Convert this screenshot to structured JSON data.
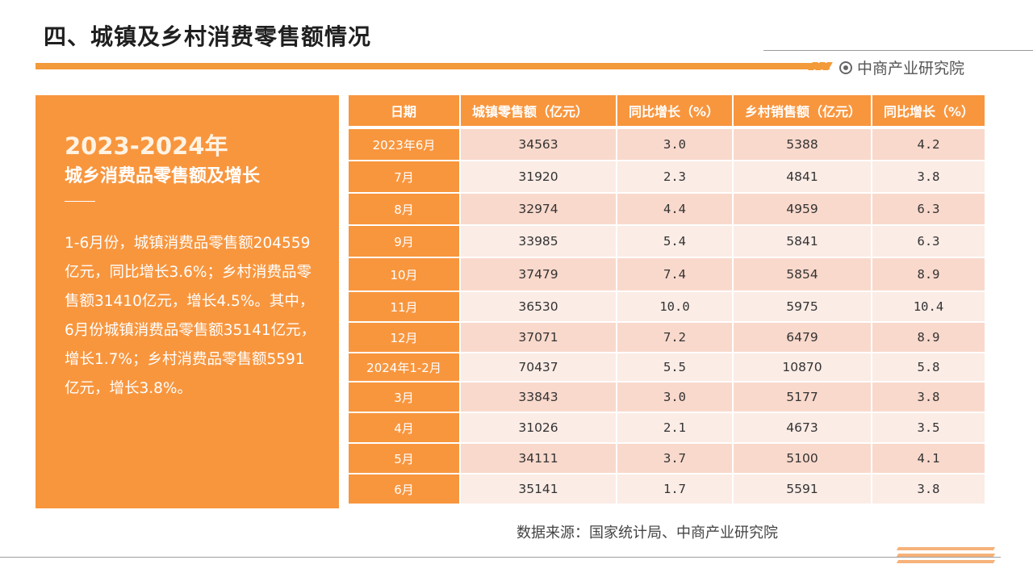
{
  "header": {
    "title": "四、城镇及乡村消费零售额情况",
    "brand": "中商产业研究院"
  },
  "panel": {
    "title_year": "2023-2024年",
    "title_sub": "城乡消费品零售额及增长",
    "body": "1-6月份，城镇消费品零售额204559亿元，同比增长3.6%；乡村消费品零售额31410亿元，增长4.5%。其中，6月份城镇消费品零售额35141亿元，增长1.7%；乡村消费品零售额5591亿元，增长3.8%。"
  },
  "table": {
    "headers": [
      "日期",
      "城镇零售额（亿元）",
      "同比增长（%）",
      "乡村销售额（亿元）",
      "同比增长（%）"
    ],
    "rows": [
      [
        "2023年6月",
        "34563",
        "3.0",
        "5388",
        "4.2"
      ],
      [
        "7月",
        "31920",
        "2.3",
        "4841",
        "3.8"
      ],
      [
        "8月",
        "32974",
        "4.4",
        "4959",
        "6.3"
      ],
      [
        "9月",
        "33985",
        "5.4",
        "5841",
        "6.3"
      ],
      [
        "10月",
        "37479",
        "7.4",
        "5854",
        "8.9"
      ],
      [
        "11月",
        "36530",
        "10.0",
        "5975",
        "10.4"
      ],
      [
        "12月",
        "37071",
        "7.2",
        "6479",
        "8.9"
      ],
      [
        "2024年1-2月",
        "70437",
        "5.5",
        "10870",
        "5.8"
      ],
      [
        "3月",
        "33843",
        "3.0",
        "5177",
        "3.8"
      ],
      [
        "4月",
        "31026",
        "2.1",
        "4673",
        "3.5"
      ],
      [
        "5月",
        "34111",
        "3.7",
        "5100",
        "4.1"
      ],
      [
        "6月",
        "35141",
        "1.7",
        "5591",
        "3.8"
      ]
    ]
  },
  "footer": {
    "source": "数据来源：国家统计局、中商产业研究院"
  },
  "colors": {
    "accent": "#f8963e",
    "row_dark": "#f9d9cc",
    "row_light": "#fbece6"
  }
}
